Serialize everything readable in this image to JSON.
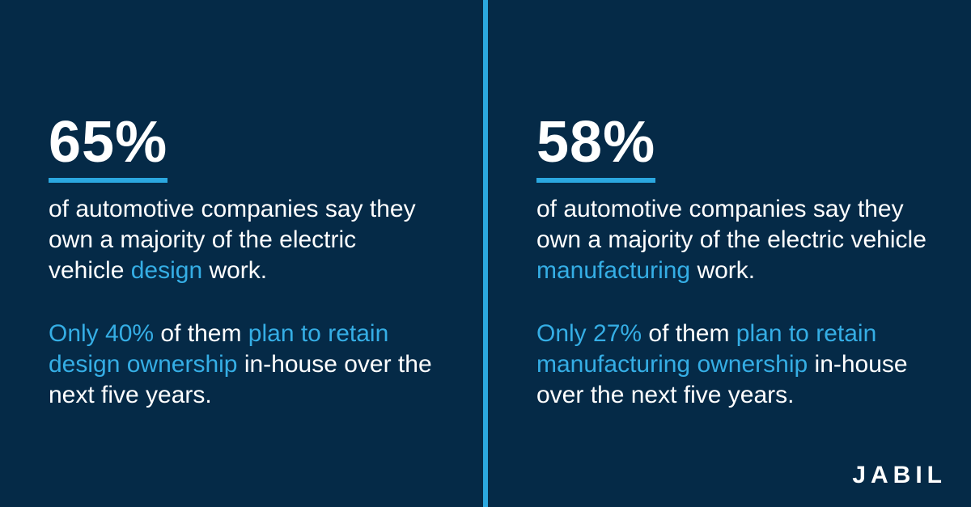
{
  "colors": {
    "background": "#052A47",
    "accent": "#2BA8E0",
    "highlight_text": "#35AEE5",
    "text": "#FFFFFF"
  },
  "left": {
    "stat": "65%",
    "desc": {
      "part1": "of automotive companies say they own a majority of the electric vehicle ",
      "highlight": "design",
      "part2": " work."
    },
    "plan": {
      "highlight1": "Only 40%",
      "part1": " of them ",
      "highlight2": "plan to retain design ownership",
      "part2": " in-house over the next five years."
    }
  },
  "right": {
    "stat": "58%",
    "desc": {
      "part1": "of automotive companies say they own a majority of the electric vehicle ",
      "highlight": "manufacturing",
      "part2": " work."
    },
    "plan": {
      "highlight1": "Only 27%",
      "part1": " of them ",
      "highlight2": "plan to retain manufacturing ownership",
      "part2": " in-house over the next five years."
    }
  },
  "logo": {
    "text": "JABIL"
  }
}
